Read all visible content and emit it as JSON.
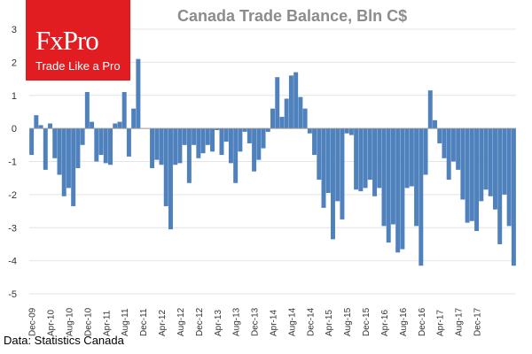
{
  "brand": {
    "name": "FxPro",
    "tagline": "Trade Like a Pro",
    "color": "#e11d21"
  },
  "source_note": "Data: Statistics Canada",
  "chart_data": {
    "type": "bar",
    "title": "Canada Trade Balance, Bln C$",
    "xlabel": "",
    "ylabel": "",
    "ylim": [
      -5,
      3
    ],
    "yticks": [
      3,
      2,
      1,
      0,
      -1,
      -2,
      -3,
      -4,
      -5
    ],
    "bar_color": "#4f81bd",
    "tick_labels": [
      "Dec-09",
      "Apr-10",
      "Aug-10",
      "Dec-10",
      "Apr-11",
      "Aug-11",
      "Dec-11",
      "Apr-12",
      "Aug-12",
      "Dec-12",
      "Apr-13",
      "Aug-13",
      "Dec-13",
      "Apr-14",
      "Aug-14",
      "Dec-14",
      "Apr-15",
      "Aug-15",
      "Dec-15",
      "Apr-16",
      "Aug-16",
      "Dec-16",
      "Apr-17",
      "Aug-17",
      "Dec-17"
    ],
    "start_month": "Dec-09",
    "values": [
      -0.8,
      0.4,
      0.1,
      -1.25,
      0.15,
      -0.9,
      -1.4,
      -2.05,
      -1.8,
      -2.35,
      -1.2,
      -0.5,
      1.1,
      0.2,
      -1.0,
      -0.8,
      -1.05,
      -1.1,
      0.15,
      0.2,
      1.1,
      -0.85,
      0.6,
      2.1,
      0.0,
      0.0,
      -1.2,
      -0.95,
      -1.1,
      -2.35,
      -3.05,
      -1.1,
      -1.05,
      -0.5,
      -1.65,
      -0.5,
      -0.9,
      -0.75,
      -0.5,
      -0.7,
      -0.05,
      -0.8,
      -0.4,
      -1.05,
      -1.65,
      -0.7,
      -0.1,
      -0.45,
      -1.3,
      -0.95,
      -0.6,
      -0.1,
      0.6,
      1.55,
      0.35,
      0.9,
      1.6,
      1.7,
      0.95,
      0.6,
      -0.15,
      -0.8,
      -1.55,
      -2.4,
      -1.95,
      -3.35,
      -2.2,
      -2.75,
      -0.15,
      -0.2,
      -1.85,
      -1.9,
      -1.8,
      -1.55,
      -2.05,
      -1.8,
      -2.95,
      -3.45,
      -2.9,
      -3.75,
      -3.65,
      -1.8,
      -1.75,
      -2.95,
      -4.15,
      -1.4,
      1.15,
      0.25,
      -0.45,
      -0.9,
      -1.55,
      -1.0,
      -1.25,
      -2.15,
      -2.85,
      -2.8,
      -3.1,
      -2.2,
      -1.85,
      -2.05,
      -2.45,
      -3.5,
      -2.0,
      -2.95,
      -4.15
    ]
  }
}
